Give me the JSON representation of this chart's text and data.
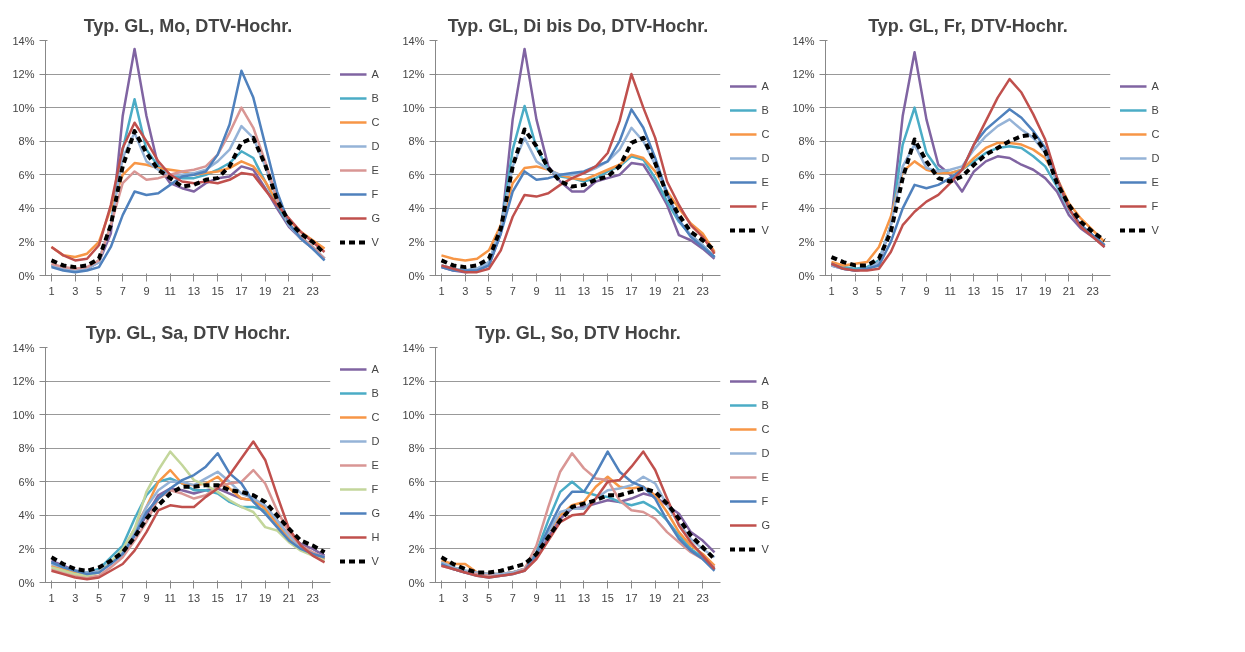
{
  "chart_data": [
    {
      "type": "line",
      "title": "Typ. GL, Mo, DTV-Hochr.",
      "x": [
        1,
        2,
        3,
        4,
        5,
        6,
        7,
        8,
        9,
        10,
        11,
        12,
        13,
        14,
        15,
        16,
        17,
        18,
        19,
        20,
        21,
        22,
        23,
        24
      ],
      "xlim": [
        0.5,
        24.5
      ],
      "xticks": [
        1,
        3,
        5,
        7,
        9,
        11,
        13,
        15,
        17,
        19,
        21,
        23
      ],
      "ylim": [
        0,
        14
      ],
      "yticks": [
        {
          "value": 0,
          "label": "0%"
        },
        {
          "value": 2,
          "label": "2%"
        },
        {
          "value": 4,
          "label": "4%"
        },
        {
          "value": 6,
          "label": "6%"
        },
        {
          "value": 8,
          "label": "8%"
        },
        {
          "value": 10,
          "label": "10%"
        },
        {
          "value": 12,
          "label": "12%"
        },
        {
          "value": 14,
          "label": "14%"
        }
      ],
      "grid": "y",
      "legend": "right",
      "series": [
        {
          "name": "A",
          "color": "#8064a2",
          "values": [
            0.6,
            0.4,
            0.3,
            0.4,
            0.8,
            2.5,
            9.5,
            13.5,
            9.5,
            6.5,
            5.5,
            5.2,
            5.0,
            5.5,
            5.8,
            5.9,
            6.5,
            6.3,
            5.2,
            4.0,
            2.9,
            2.2,
            1.6,
            1.0
          ]
        },
        {
          "name": "B",
          "color": "#4bacc6",
          "values": [
            0.6,
            0.4,
            0.3,
            0.4,
            0.9,
            3.0,
            7.5,
            10.5,
            7.5,
            6.5,
            6.0,
            5.8,
            5.8,
            6.0,
            6.3,
            6.7,
            7.4,
            7.0,
            5.6,
            4.2,
            3.0,
            2.3,
            1.7,
            1.0
          ]
        },
        {
          "name": "C",
          "color": "#f79646",
          "values": [
            1.7,
            1.2,
            1.1,
            1.3,
            2.0,
            4.0,
            6.0,
            6.7,
            6.6,
            6.4,
            6.3,
            6.2,
            6.0,
            6.1,
            6.2,
            6.4,
            6.8,
            6.5,
            5.6,
            4.4,
            3.3,
            2.6,
            2.1,
            1.6
          ]
        },
        {
          "name": "D",
          "color": "#95b3d7",
          "values": [
            0.6,
            0.4,
            0.3,
            0.4,
            0.8,
            3.0,
            7.0,
            8.5,
            6.8,
            6.3,
            6.0,
            6.0,
            6.1,
            6.3,
            6.8,
            7.5,
            8.9,
            8.2,
            6.5,
            4.5,
            3.0,
            2.2,
            1.6,
            0.9
          ]
        },
        {
          "name": "E",
          "color": "#d99694",
          "values": [
            0.7,
            0.5,
            0.4,
            0.5,
            0.9,
            3.0,
            5.5,
            6.2,
            5.7,
            5.8,
            6.0,
            6.2,
            6.3,
            6.5,
            7.2,
            8.5,
            10.0,
            8.8,
            6.8,
            4.6,
            3.1,
            2.3,
            1.7,
            1.0
          ]
        },
        {
          "name": "F",
          "color": "#4f81bd",
          "values": [
            0.5,
            0.3,
            0.2,
            0.3,
            0.5,
            1.7,
            3.6,
            5.0,
            4.8,
            4.9,
            5.4,
            5.9,
            6.0,
            6.2,
            7.2,
            9.0,
            12.2,
            10.6,
            7.8,
            5.0,
            3.1,
            2.2,
            1.6,
            0.9
          ]
        },
        {
          "name": "G",
          "color": "#c0504d",
          "values": [
            1.7,
            1.2,
            0.9,
            1.0,
            1.8,
            4.2,
            7.6,
            9.1,
            8.0,
            6.8,
            6.0,
            5.6,
            5.5,
            5.6,
            5.5,
            5.7,
            6.1,
            6.0,
            5.1,
            4.2,
            3.4,
            2.6,
            2.0,
            1.4
          ]
        },
        {
          "name": "V",
          "color": "#000000",
          "line_style": "dashed",
          "values": [
            0.9,
            0.6,
            0.5,
            0.6,
            1.0,
            3.0,
            6.5,
            8.6,
            7.3,
            6.3,
            5.8,
            5.3,
            5.4,
            5.7,
            5.8,
            6.5,
            7.9,
            8.2,
            6.6,
            4.5,
            3.2,
            2.5,
            2.0,
            1.3
          ]
        }
      ]
    },
    {
      "type": "line",
      "title": "Typ. GL, Di bis Do, DTV-Hochr.",
      "x": [
        1,
        2,
        3,
        4,
        5,
        6,
        7,
        8,
        9,
        10,
        11,
        12,
        13,
        14,
        15,
        16,
        17,
        18,
        19,
        20,
        21,
        22,
        23,
        24
      ],
      "xlim": [
        0.5,
        24.5
      ],
      "xticks": [
        1,
        3,
        5,
        7,
        9,
        11,
        13,
        15,
        17,
        19,
        21,
        23
      ],
      "ylim": [
        0,
        14
      ],
      "yticks": [
        {
          "value": 0,
          "label": "0%"
        },
        {
          "value": 2,
          "label": "2%"
        },
        {
          "value": 4,
          "label": "4%"
        },
        {
          "value": 6,
          "label": "6%"
        },
        {
          "value": 8,
          "label": "8%"
        },
        {
          "value": 10,
          "label": "10%"
        },
        {
          "value": 12,
          "label": "12%"
        },
        {
          "value": 14,
          "label": "14%"
        }
      ],
      "grid": "y",
      "legend": "right",
      "series": [
        {
          "name": "A",
          "color": "#8064a2",
          "values": [
            0.5,
            0.3,
            0.2,
            0.3,
            0.6,
            2.5,
            9.3,
            13.5,
            9.3,
            6.5,
            5.6,
            5.0,
            5.0,
            5.6,
            5.8,
            6.0,
            6.7,
            6.6,
            5.5,
            4.2,
            2.4,
            2.1,
            1.6,
            1.0
          ]
        },
        {
          "name": "B",
          "color": "#4bacc6",
          "values": [
            0.6,
            0.4,
            0.3,
            0.4,
            0.8,
            2.8,
            7.5,
            10.1,
            7.6,
            6.3,
            5.9,
            5.8,
            5.6,
            5.8,
            6.2,
            6.5,
            7.1,
            6.9,
            5.8,
            4.4,
            3.2,
            2.4,
            1.8,
            1.1
          ]
        },
        {
          "name": "C",
          "color": "#f79646",
          "values": [
            1.2,
            1.0,
            0.9,
            1.0,
            1.5,
            3.0,
            5.5,
            6.4,
            6.5,
            6.3,
            6.0,
            5.8,
            5.7,
            6.0,
            6.3,
            6.6,
            7.2,
            7.0,
            6.2,
            5.0,
            4.0,
            3.1,
            2.5,
            1.4
          ]
        },
        {
          "name": "D",
          "color": "#95b3d7",
          "values": [
            0.6,
            0.4,
            0.3,
            0.4,
            0.8,
            2.8,
            6.5,
            8.2,
            6.8,
            6.3,
            6.0,
            6.0,
            6.1,
            6.4,
            6.8,
            7.5,
            8.8,
            8.0,
            6.6,
            4.8,
            3.3,
            2.4,
            1.8,
            1.1
          ]
        },
        {
          "name": "E",
          "color": "#4f81bd",
          "values": [
            0.5,
            0.3,
            0.3,
            0.3,
            0.6,
            2.5,
            5.0,
            6.2,
            5.7,
            5.8,
            6.0,
            6.1,
            6.2,
            6.5,
            6.8,
            8.0,
            9.9,
            8.8,
            7.0,
            4.9,
            3.3,
            2.3,
            1.7,
            1.1
          ]
        },
        {
          "name": "F",
          "color": "#c0504d",
          "values": [
            0.6,
            0.4,
            0.2,
            0.2,
            0.4,
            1.5,
            3.5,
            4.8,
            4.7,
            4.9,
            5.4,
            5.8,
            6.1,
            6.5,
            7.3,
            9.2,
            12.0,
            10.0,
            8.2,
            5.6,
            4.2,
            3.0,
            2.3,
            1.3
          ]
        },
        {
          "name": "V",
          "color": "#000000",
          "line_style": "dashed",
          "values": [
            0.9,
            0.6,
            0.5,
            0.6,
            1.0,
            2.8,
            6.5,
            8.7,
            7.7,
            6.4,
            5.6,
            5.3,
            5.4,
            5.7,
            5.9,
            6.5,
            7.9,
            8.2,
            6.7,
            4.8,
            3.6,
            2.6,
            2.1,
            1.5
          ]
        }
      ]
    },
    {
      "type": "line",
      "title": "Typ. GL, Fr, DTV-Hochr.",
      "x": [
        1,
        2,
        3,
        4,
        5,
        6,
        7,
        8,
        9,
        10,
        11,
        12,
        13,
        14,
        15,
        16,
        17,
        18,
        19,
        20,
        21,
        22,
        23,
        24
      ],
      "xlim": [
        0.5,
        24.5
      ],
      "xticks": [
        1,
        3,
        5,
        7,
        9,
        11,
        13,
        15,
        17,
        19,
        21,
        23
      ],
      "ylim": [
        0,
        14
      ],
      "yticks": [
        {
          "value": 0,
          "label": "0%"
        },
        {
          "value": 2,
          "label": "2%"
        },
        {
          "value": 4,
          "label": "4%"
        },
        {
          "value": 6,
          "label": "6%"
        },
        {
          "value": 8,
          "label": "8%"
        },
        {
          "value": 10,
          "label": "10%"
        },
        {
          "value": 12,
          "label": "12%"
        },
        {
          "value": 14,
          "label": "14%"
        }
      ],
      "grid": "y",
      "legend": "right",
      "series": [
        {
          "name": "A",
          "color": "#8064a2",
          "values": [
            0.6,
            0.4,
            0.3,
            0.4,
            0.7,
            3.0,
            9.5,
            13.3,
            9.3,
            6.6,
            6.0,
            5.0,
            6.2,
            6.8,
            7.1,
            7.0,
            6.6,
            6.3,
            5.8,
            5.0,
            3.6,
            2.8,
            2.3,
            1.7
          ]
        },
        {
          "name": "B",
          "color": "#4bacc6",
          "values": [
            0.7,
            0.5,
            0.4,
            0.5,
            0.9,
            3.0,
            7.8,
            10.0,
            7.3,
            6.3,
            6.1,
            6.3,
            6.8,
            7.3,
            7.6,
            7.7,
            7.6,
            7.1,
            6.5,
            5.3,
            3.9,
            3.0,
            2.4,
            1.8
          ]
        },
        {
          "name": "C",
          "color": "#f79646",
          "values": [
            0.8,
            0.6,
            0.7,
            0.8,
            1.7,
            3.5,
            6.2,
            6.8,
            6.3,
            6.1,
            6.1,
            6.3,
            7.0,
            7.6,
            7.9,
            7.9,
            7.8,
            7.5,
            7.0,
            5.8,
            4.3,
            3.4,
            2.7,
            2.0
          ]
        },
        {
          "name": "D",
          "color": "#95b3d7",
          "values": [
            0.6,
            0.4,
            0.3,
            0.4,
            0.8,
            3.0,
            6.5,
            7.8,
            6.4,
            6.2,
            6.3,
            6.5,
            7.5,
            8.3,
            8.9,
            9.3,
            8.7,
            8.2,
            7.3,
            5.5,
            3.9,
            3.0,
            2.4,
            1.8
          ]
        },
        {
          "name": "E",
          "color": "#4f81bd",
          "values": [
            0.7,
            0.4,
            0.3,
            0.4,
            0.6,
            2.0,
            4.0,
            5.4,
            5.2,
            5.4,
            5.8,
            6.3,
            7.8,
            8.7,
            9.3,
            9.9,
            9.4,
            8.6,
            7.6,
            5.8,
            4.0,
            3.0,
            2.4,
            1.8
          ]
        },
        {
          "name": "F",
          "color": "#c0504d",
          "values": [
            0.7,
            0.4,
            0.3,
            0.3,
            0.4,
            1.4,
            3.0,
            3.8,
            4.4,
            4.8,
            5.5,
            6.3,
            7.8,
            9.2,
            10.6,
            11.7,
            10.9,
            9.6,
            8.1,
            5.8,
            4.0,
            2.9,
            2.3,
            1.7
          ]
        },
        {
          "name": "V",
          "color": "#000000",
          "line_style": "dashed",
          "values": [
            1.1,
            0.8,
            0.6,
            0.6,
            1.0,
            2.6,
            5.8,
            8.1,
            6.8,
            5.8,
            5.6,
            5.9,
            6.6,
            7.2,
            7.6,
            8.0,
            8.3,
            8.4,
            7.4,
            5.5,
            4.2,
            3.2,
            2.6,
            2.1
          ]
        }
      ]
    },
    {
      "type": "line",
      "title": "Typ. GL, Sa, DTV Hochr.",
      "x": [
        1,
        2,
        3,
        4,
        5,
        6,
        7,
        8,
        9,
        10,
        11,
        12,
        13,
        14,
        15,
        16,
        17,
        18,
        19,
        20,
        21,
        22,
        23,
        24
      ],
      "xlim": [
        0.5,
        24.5
      ],
      "xticks": [
        1,
        3,
        5,
        7,
        9,
        11,
        13,
        15,
        17,
        19,
        21,
        23
      ],
      "ylim": [
        0,
        14
      ],
      "yticks": [
        {
          "value": 0,
          "label": "0%"
        },
        {
          "value": 2,
          "label": "2%"
        },
        {
          "value": 4,
          "label": "4%"
        },
        {
          "value": 6,
          "label": "6%"
        },
        {
          "value": 8,
          "label": "8%"
        },
        {
          "value": 10,
          "label": "10%"
        },
        {
          "value": 12,
          "label": "12%"
        },
        {
          "value": 14,
          "label": "14%"
        }
      ],
      "grid": "y",
      "legend": "right",
      "series": [
        {
          "name": "A",
          "color": "#8064a2",
          "values": [
            1.3,
            1.0,
            0.7,
            0.6,
            0.7,
            1.2,
            1.8,
            2.8,
            4.0,
            5.2,
            5.6,
            5.5,
            5.3,
            5.5,
            5.6,
            5.3,
            5.0,
            4.9,
            4.5,
            3.7,
            2.8,
            2.3,
            2.0,
            1.6
          ]
        },
        {
          "name": "B",
          "color": "#4bacc6",
          "values": [
            1.2,
            0.9,
            0.7,
            0.6,
            0.8,
            1.5,
            2.2,
            3.8,
            5.2,
            6.0,
            6.2,
            5.9,
            5.5,
            5.5,
            5.3,
            4.8,
            4.5,
            4.5,
            4.3,
            3.5,
            2.6,
            2.0,
            1.7,
            1.4
          ]
        },
        {
          "name": "C",
          "color": "#f79646",
          "values": [
            1.0,
            0.8,
            0.6,
            0.5,
            0.6,
            1.2,
            1.9,
            3.2,
            4.5,
            6.0,
            6.7,
            5.9,
            5.8,
            5.9,
            6.3,
            5.6,
            5.0,
            4.9,
            4.4,
            3.5,
            2.6,
            2.0,
            1.7,
            1.4
          ]
        },
        {
          "name": "D",
          "color": "#95b3d7",
          "values": [
            1.1,
            0.9,
            0.7,
            0.6,
            0.7,
            1.2,
            1.8,
            3.0,
            4.5,
            5.5,
            6.0,
            6.0,
            5.8,
            6.2,
            6.6,
            6.0,
            5.3,
            5.0,
            4.6,
            3.7,
            2.8,
            2.1,
            1.8,
            1.5
          ]
        },
        {
          "name": "E",
          "color": "#d99694",
          "values": [
            0.8,
            0.6,
            0.4,
            0.3,
            0.4,
            0.9,
            1.5,
            2.5,
            3.6,
            5.0,
            5.5,
            5.3,
            5.0,
            5.2,
            5.7,
            5.9,
            6.0,
            6.7,
            5.9,
            4.3,
            3.0,
            2.2,
            1.8,
            1.5
          ]
        },
        {
          "name": "F",
          "color": "#c3d69b",
          "values": [
            0.9,
            0.7,
            0.5,
            0.4,
            0.6,
            1.2,
            2.0,
            3.2,
            5.4,
            6.7,
            7.8,
            7.0,
            6.1,
            5.8,
            5.4,
            4.9,
            4.5,
            4.2,
            3.3,
            3.1,
            2.4,
            1.9,
            1.6,
            1.3
          ]
        },
        {
          "name": "G",
          "color": "#4f81bd",
          "values": [
            1.2,
            0.9,
            0.7,
            0.5,
            0.6,
            1.1,
            1.7,
            2.8,
            4.2,
            5.0,
            5.6,
            6.1,
            6.4,
            6.9,
            7.7,
            6.5,
            5.9,
            4.8,
            4.1,
            3.3,
            2.5,
            2.0,
            1.7,
            1.5
          ]
        },
        {
          "name": "H",
          "color": "#c0504d",
          "values": [
            0.7,
            0.5,
            0.3,
            0.2,
            0.3,
            0.7,
            1.1,
            1.9,
            3.0,
            4.3,
            4.6,
            4.5,
            4.5,
            5.1,
            5.6,
            6.4,
            7.4,
            8.4,
            7.3,
            5.2,
            3.2,
            2.2,
            1.6,
            1.2
          ]
        },
        {
          "name": "V",
          "color": "#000000",
          "line_style": "dashed",
          "values": [
            1.5,
            1.1,
            0.8,
            0.7,
            0.9,
            1.3,
            1.8,
            2.7,
            3.8,
            4.6,
            5.3,
            5.7,
            5.7,
            5.8,
            5.8,
            5.5,
            5.4,
            5.2,
            4.8,
            4.0,
            3.2,
            2.5,
            2.2,
            1.8
          ]
        }
      ]
    },
    {
      "type": "line",
      "title": "Typ. GL, So, DTV Hochr.",
      "x": [
        1,
        2,
        3,
        4,
        5,
        6,
        7,
        8,
        9,
        10,
        11,
        12,
        13,
        14,
        15,
        16,
        17,
        18,
        19,
        20,
        21,
        22,
        23,
        24
      ],
      "xlim": [
        0.5,
        24.5
      ],
      "xticks": [
        1,
        3,
        5,
        7,
        9,
        11,
        13,
        15,
        17,
        19,
        21,
        23
      ],
      "ylim": [
        0,
        14
      ],
      "yticks": [
        {
          "value": 0,
          "label": "0%"
        },
        {
          "value": 2,
          "label": "2%"
        },
        {
          "value": 4,
          "label": "4%"
        },
        {
          "value": 6,
          "label": "6%"
        },
        {
          "value": 8,
          "label": "8%"
        },
        {
          "value": 10,
          "label": "10%"
        },
        {
          "value": 12,
          "label": "12%"
        },
        {
          "value": 14,
          "label": "14%"
        }
      ],
      "grid": "y",
      "legend": "right",
      "series": [
        {
          "name": "A",
          "color": "#8064a2",
          "values": [
            1.1,
            0.8,
            0.6,
            0.5,
            0.4,
            0.5,
            0.6,
            0.8,
            1.6,
            2.7,
            3.8,
            4.4,
            4.5,
            4.7,
            4.9,
            4.8,
            5.0,
            5.3,
            5.1,
            4.6,
            4.1,
            3.0,
            2.5,
            1.8
          ]
        },
        {
          "name": "B",
          "color": "#4bacc6",
          "values": [
            1.2,
            0.9,
            0.7,
            0.6,
            0.5,
            0.5,
            0.6,
            0.8,
            1.8,
            3.7,
            5.4,
            6.0,
            5.4,
            5.2,
            5.1,
            4.8,
            4.6,
            4.8,
            4.4,
            3.7,
            2.8,
            2.0,
            1.5,
            0.8
          ]
        },
        {
          "name": "C",
          "color": "#f79646",
          "values": [
            1.3,
            1.1,
            1.1,
            0.6,
            0.5,
            0.5,
            0.6,
            0.8,
            1.7,
            3.0,
            4.0,
            4.6,
            4.8,
            5.7,
            6.3,
            5.7,
            5.6,
            5.7,
            5.2,
            4.2,
            3.0,
            2.2,
            1.7,
            1.0
          ]
        },
        {
          "name": "D",
          "color": "#95b3d7",
          "values": [
            1.2,
            0.9,
            0.7,
            0.6,
            0.5,
            0.5,
            0.6,
            0.8,
            1.7,
            3.0,
            4.2,
            4.4,
            4.4,
            5.0,
            5.5,
            5.6,
            5.8,
            6.3,
            5.9,
            4.6,
            3.5,
            2.6,
            2.0,
            1.5
          ]
        },
        {
          "name": "E",
          "color": "#d99694",
          "values": [
            1.0,
            0.8,
            0.6,
            0.5,
            0.4,
            0.4,
            0.5,
            0.8,
            2.2,
            4.5,
            6.6,
            7.7,
            6.8,
            6.2,
            6.1,
            4.9,
            4.3,
            4.2,
            3.8,
            3.0,
            2.4,
            1.8,
            1.4,
            0.9
          ]
        },
        {
          "name": "F",
          "color": "#4f81bd",
          "values": [
            1.1,
            0.8,
            0.6,
            0.4,
            0.3,
            0.4,
            0.5,
            0.7,
            1.7,
            3.2,
            4.6,
            5.4,
            5.4,
            6.5,
            7.8,
            6.6,
            6.0,
            5.7,
            5.0,
            3.7,
            2.6,
            1.9,
            1.4,
            0.7
          ]
        },
        {
          "name": "G",
          "color": "#c0504d",
          "values": [
            1.0,
            0.8,
            0.6,
            0.4,
            0.3,
            0.4,
            0.5,
            0.7,
            1.4,
            2.5,
            3.6,
            4.0,
            4.1,
            5.0,
            6.0,
            6.1,
            6.9,
            7.8,
            6.7,
            5.0,
            3.4,
            2.4,
            1.6,
            0.8
          ]
        },
        {
          "name": "V",
          "color": "#000000",
          "line_style": "dashed",
          "values": [
            1.5,
            1.1,
            0.8,
            0.6,
            0.6,
            0.7,
            0.9,
            1.1,
            1.7,
            2.7,
            3.7,
            4.5,
            4.7,
            4.9,
            5.2,
            5.2,
            5.4,
            5.6,
            5.4,
            4.7,
            3.8,
            2.8,
            2.1,
            1.4
          ]
        }
      ]
    }
  ]
}
